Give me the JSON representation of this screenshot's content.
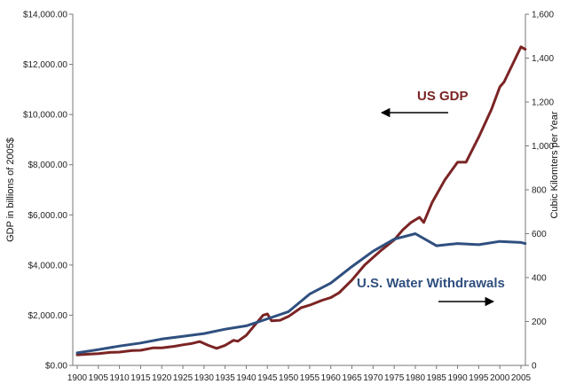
{
  "chart_data": {
    "type": "line",
    "x_ticks": [
      "1900",
      "1905",
      "1910",
      "1915",
      "1920",
      "1925",
      "1930",
      "1935",
      "1940",
      "1945",
      "1950",
      "1955",
      "1960",
      "1965",
      "1970",
      "1975",
      "1980",
      "1985",
      "1990",
      "1995",
      "2000",
      "2005"
    ],
    "y_left": {
      "label": "GDP in billions of 2005$",
      "range": [
        0,
        14000
      ],
      "ticks": [
        "$0.00",
        "$2,000.00",
        "$4,000.00",
        "$6,000.00",
        "$8,000.00",
        "$10,000.00",
        "$12,000.00",
        "$14,000.00"
      ]
    },
    "y_right": {
      "label": "Cubic Kilomters per Year",
      "range": [
        0,
        1600
      ],
      "ticks": [
        "0",
        "200",
        "400",
        "600",
        "800",
        "1,000",
        "1,200",
        "1,400",
        "1,600"
      ]
    },
    "series": [
      {
        "name": "US GDP",
        "axis": "left",
        "color": "#7b2424",
        "x": [
          1900,
          1903,
          1905,
          1908,
          1910,
          1913,
          1915,
          1918,
          1920,
          1923,
          1925,
          1927,
          1929,
          1931,
          1933,
          1935,
          1937,
          1938,
          1940,
          1942,
          1944,
          1945,
          1946,
          1948,
          1950,
          1953,
          1955,
          1958,
          1960,
          1962,
          1965,
          1968,
          1970,
          1972,
          1975,
          1977,
          1979,
          1980,
          1981,
          1982,
          1984,
          1987,
          1990,
          1992,
          1995,
          1998,
          2000,
          2001,
          2003,
          2005,
          2006
        ],
        "values": [
          420,
          450,
          470,
          520,
          530,
          590,
          600,
          700,
          700,
          760,
          820,
          870,
          950,
          800,
          680,
          800,
          1000,
          960,
          1200,
          1600,
          2000,
          2050,
          1780,
          1800,
          1950,
          2300,
          2400,
          2600,
          2700,
          2900,
          3400,
          4000,
          4300,
          4600,
          5000,
          5400,
          5700,
          5800,
          5900,
          5700,
          6500,
          7400,
          8100,
          8100,
          9100,
          10200,
          11100,
          11300,
          12000,
          12700,
          12600
        ]
      },
      {
        "name": "U.S. Water Withdrawals",
        "axis": "right",
        "color": "#2f4f7f",
        "x": [
          1900,
          1905,
          1910,
          1915,
          1920,
          1925,
          1930,
          1935,
          1940,
          1945,
          1950,
          1955,
          1960,
          1965,
          1970,
          1975,
          1980,
          1985,
          1990,
          1995,
          2000,
          2005,
          2006
        ],
        "values": [
          57,
          72,
          88,
          102,
          120,
          132,
          145,
          165,
          180,
          212,
          245,
          325,
          375,
          450,
          520,
          575,
          600,
          545,
          555,
          550,
          565,
          560,
          555
        ]
      }
    ],
    "annotations": [
      {
        "text": "US GDP",
        "color": "#7b2424",
        "arrow": "left"
      },
      {
        "text": "U.S. Water Withdrawals",
        "color": "#2f4f7f",
        "arrow": "right"
      }
    ]
  }
}
